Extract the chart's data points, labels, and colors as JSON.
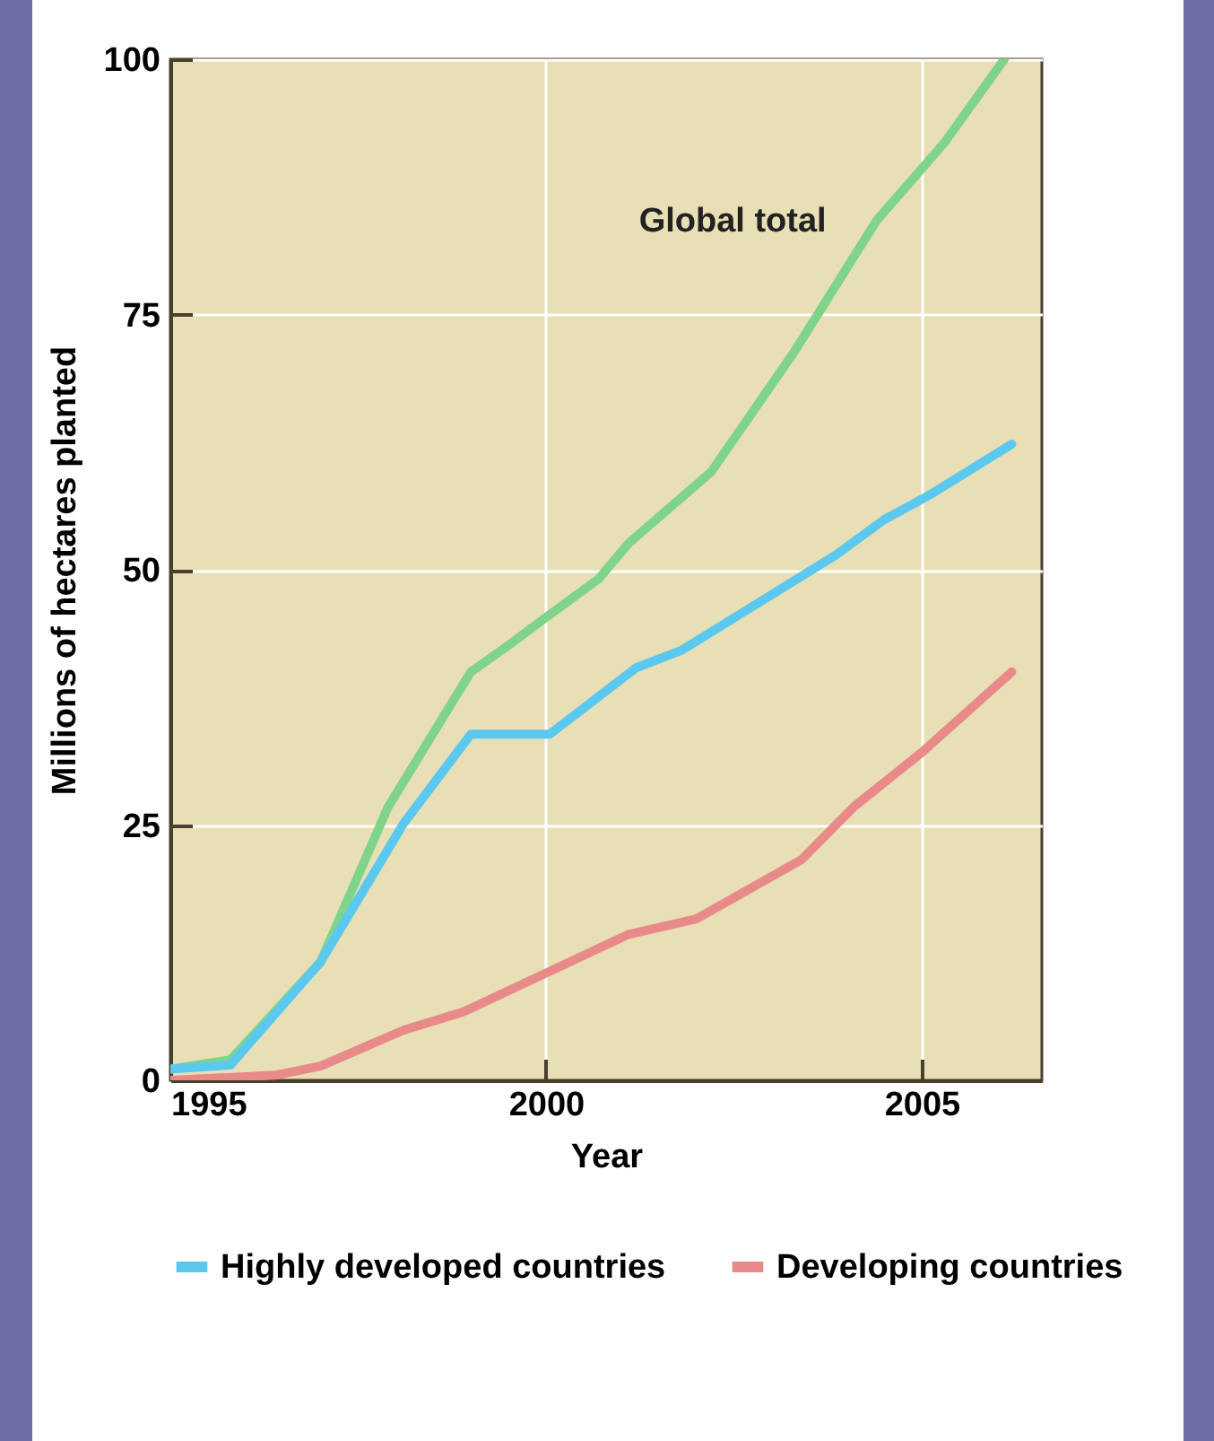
{
  "chart_data": {
    "type": "line",
    "xlabel": "Year",
    "ylabel": "Millions of hectares planted",
    "xlim": [
      1995,
      2006.6
    ],
    "xticks": [
      1995,
      2000,
      2005
    ],
    "ylim": [
      0,
      100
    ],
    "yticks": [
      0,
      25,
      50,
      75,
      100
    ],
    "grid": true,
    "legend": "bottom",
    "series": [
      {
        "color": "#7fd48a",
        "x": [
          1995,
          1995.8,
          1997.0,
          1997.9,
          1999.0,
          1999.5,
          2000.05,
          2000.7,
          2001.1,
          2002.2,
          2003.3,
          2004.4,
          2005.3,
          2006.1
        ],
        "values": [
          1.1,
          2.0,
          11.6,
          26.8,
          40,
          42.6,
          45.6,
          49.1,
          52.6,
          59.6,
          71.3,
          84.2,
          91.8,
          100
        ]
      },
      {
        "name": "Highly developed countries",
        "color": "#5bc8ef",
        "x": [
          1995,
          1995.8,
          1997.0,
          1998.1,
          1999.0,
          2000.05,
          2001.2,
          2001.8,
          2003.85,
          2004.5,
          2005.1,
          2006.2
        ],
        "values": [
          1.1,
          1.5,
          11.6,
          25.1,
          33.9,
          33.9,
          40.4,
          42.1,
          51.4,
          54.9,
          57.3,
          62.3
        ]
      },
      {
        "name": "Developing countries",
        "color": "#e88a8a",
        "x": [
          1995,
          1996.4,
          1997.0,
          1998.1,
          1998.9,
          2000.0,
          2001.1,
          2002.0,
          2003.4,
          2004.1,
          2005.0,
          2006.2
        ],
        "values": [
          0,
          0.5,
          1.4,
          4.9,
          6.7,
          10.5,
          14.3,
          15.8,
          21.6,
          26.8,
          32.1,
          40
        ]
      }
    ],
    "annotations": [
      {
        "text": "Global total",
        "x": 2004.4,
        "y": 84.2
      }
    ]
  }
}
